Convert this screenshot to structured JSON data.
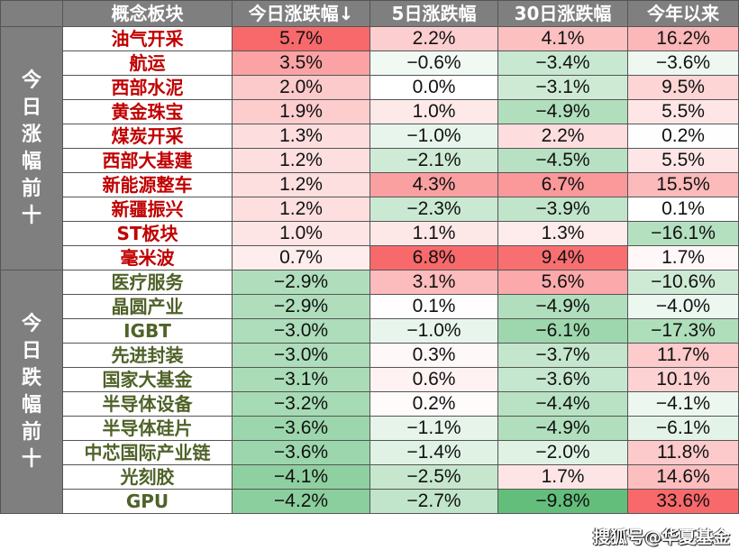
{
  "chart_data": {
    "type": "table",
    "columns": [
      "概念板块",
      "今日涨跌幅↓",
      "5日涨跌幅",
      "30日涨跌幅",
      "今年以来"
    ],
    "groups": [
      {
        "label": "今日涨幅前十",
        "rows": [
          {
            "name": "油气开采",
            "values": [
              "5.7%",
              "2.2%",
              "4.1%",
              "16.2%"
            ]
          },
          {
            "name": "航运",
            "values": [
              "3.5%",
              "−0.6%",
              "−3.4%",
              "−3.6%"
            ]
          },
          {
            "name": "西部水泥",
            "values": [
              "2.0%",
              "0.0%",
              "−3.1%",
              "9.5%"
            ]
          },
          {
            "name": "黄金珠宝",
            "values": [
              "1.9%",
              "1.0%",
              "−4.9%",
              "5.5%"
            ]
          },
          {
            "name": "煤炭开采",
            "values": [
              "1.3%",
              "−1.0%",
              "2.2%",
              "0.2%"
            ]
          },
          {
            "name": "西部大基建",
            "values": [
              "1.2%",
              "−2.1%",
              "−4.5%",
              "5.5%"
            ]
          },
          {
            "name": "新能源整车",
            "values": [
              "1.2%",
              "4.3%",
              "6.7%",
              "15.5%"
            ]
          },
          {
            "name": "新疆振兴",
            "values": [
              "1.2%",
              "−2.3%",
              "−3.9%",
              "0.1%"
            ]
          },
          {
            "name": "ST板块",
            "values": [
              "1.0%",
              "1.1%",
              "1.3%",
              "−16.1%"
            ]
          },
          {
            "name": "毫米波",
            "values": [
              "0.7%",
              "6.8%",
              "9.4%",
              "1.7%"
            ]
          }
        ]
      },
      {
        "label": "今日跌幅前十",
        "rows": [
          {
            "name": "医疗服务",
            "values": [
              "−2.9%",
              "3.1%",
              "5.6%",
              "−10.6%"
            ]
          },
          {
            "name": "晶圆产业",
            "values": [
              "−2.9%",
              "0.1%",
              "−4.9%",
              "−4.0%"
            ]
          },
          {
            "name": "IGBT",
            "values": [
              "−3.0%",
              "−1.0%",
              "−6.1%",
              "−17.3%"
            ]
          },
          {
            "name": "先进封装",
            "values": [
              "−3.0%",
              "0.3%",
              "−3.7%",
              "11.7%"
            ]
          },
          {
            "name": "国家大基金",
            "values": [
              "−3.1%",
              "0.6%",
              "−3.6%",
              "10.1%"
            ]
          },
          {
            "name": "半导体设备",
            "values": [
              "−3.2%",
              "0.2%",
              "−4.4%",
              "−4.1%"
            ]
          },
          {
            "name": "半导体硅片",
            "values": [
              "−3.6%",
              "−1.1%",
              "−4.9%",
              "−6.1%"
            ]
          },
          {
            "name": "中芯国际产业链",
            "values": [
              "−3.6%",
              "−1.4%",
              "−2.0%",
              "11.8%"
            ]
          },
          {
            "name": "光刻胶",
            "values": [
              "−4.1%",
              "−2.5%",
              "1.7%",
              "14.6%"
            ]
          },
          {
            "name": "GPU",
            "values": [
              "−4.2%",
              "−2.7%",
              "−9.8%",
              "33.6%"
            ]
          }
        ]
      }
    ],
    "color_scale": {
      "positive": "#f8696b",
      "negative": "#63be7b",
      "zero": "#ffffff"
    }
  },
  "colors": {
    "header_bg": "#7f7f7f",
    "up_name": "#c00000",
    "down_name": "#4f6228"
  },
  "watermark": "搜狐号@华夏基金"
}
